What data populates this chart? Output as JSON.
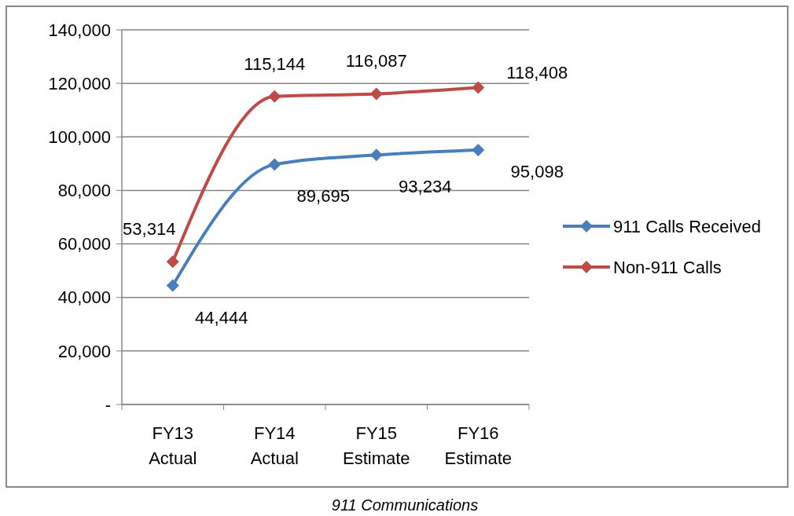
{
  "chart_data": {
    "type": "line",
    "categories": [
      "FY13\nActual",
      "FY14\nActual",
      "FY15\nEstimate",
      "FY16\nEstimate"
    ],
    "series": [
      {
        "name": "911 Calls Received",
        "color": "#4a7ebb",
        "values": [
          44444,
          89695,
          93234,
          95098
        ],
        "value_labels": [
          "44,444",
          "89,695",
          "93,234",
          "95,098"
        ]
      },
      {
        "name": "Non-911 Calls",
        "color": "#be4b48",
        "values": [
          53314,
          115144,
          116087,
          118408
        ],
        "value_labels": [
          "53,314",
          "115,144",
          "116,087",
          "118,408"
        ]
      }
    ],
    "ylim": [
      0,
      140000
    ],
    "yticks": [
      {
        "value": 0,
        "label": "-"
      },
      {
        "value": 20000,
        "label": "20,000"
      },
      {
        "value": 40000,
        "label": "40,000"
      },
      {
        "value": 60000,
        "label": "60,000"
      },
      {
        "value": 80000,
        "label": "80,000"
      },
      {
        "value": 100000,
        "label": "100,000"
      },
      {
        "value": 120000,
        "label": "120,000"
      },
      {
        "value": 140000,
        "label": "140,000"
      }
    ],
    "grid": "y",
    "legend": "right",
    "marker": "diamond",
    "annotations": [
      "911 Communications"
    ]
  }
}
